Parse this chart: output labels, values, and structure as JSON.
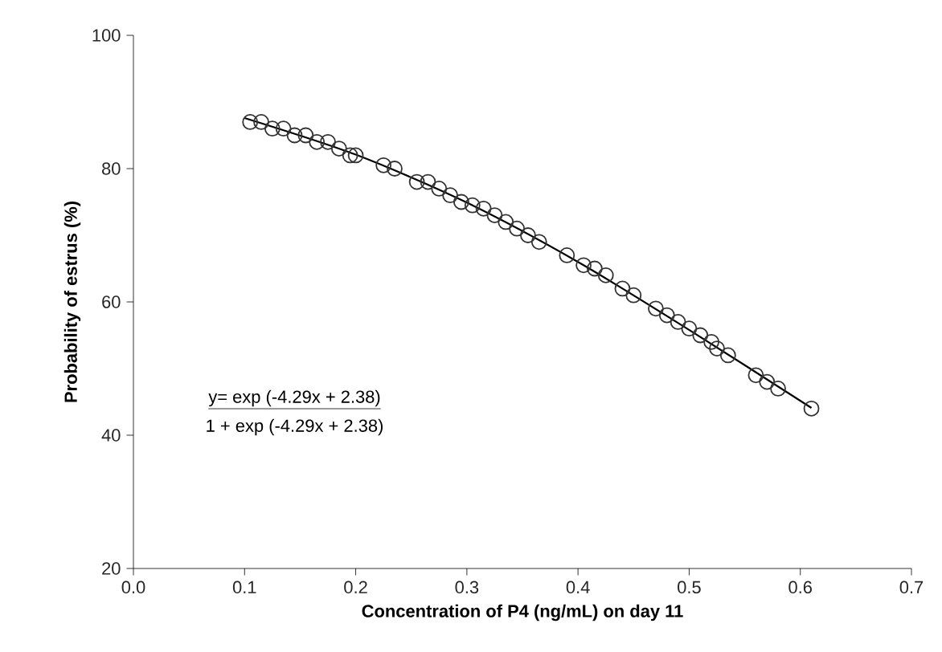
{
  "chart_data": {
    "type": "scatter",
    "xlabel": "Concentration of P4 (ng/mL) on day 11",
    "ylabel": "Probability of estrus (%)",
    "xlim": [
      0,
      0.7
    ],
    "ylim": [
      20,
      100
    ],
    "xticks": [
      {
        "value": 0,
        "label": "0.0"
      },
      {
        "value": 0.1,
        "label": "0.1"
      },
      {
        "value": 0.2,
        "label": "0.2"
      },
      {
        "value": 0.3,
        "label": "0.3"
      },
      {
        "value": 0.4,
        "label": "0.4"
      },
      {
        "value": 0.5,
        "label": "0.5"
      },
      {
        "value": 0.6,
        "label": "0.6"
      },
      {
        "value": 0.7,
        "label": "0.7"
      }
    ],
    "yticks": [
      20,
      40,
      60,
      80,
      100
    ],
    "marker": "circle",
    "series": [
      {
        "color": "#333333",
        "x": [
          0.105,
          0.115,
          0.125,
          0.135,
          0.145,
          0.155,
          0.165,
          0.175,
          0.185,
          0.195,
          0.2,
          0.225,
          0.235,
          0.255,
          0.265,
          0.275,
          0.285,
          0.295,
          0.305,
          0.315,
          0.325,
          0.335,
          0.345,
          0.355,
          0.365,
          0.39,
          0.405,
          0.415,
          0.425,
          0.44,
          0.45,
          0.47,
          0.48,
          0.49,
          0.5,
          0.51,
          0.52,
          0.525,
          0.535,
          0.56,
          0.57,
          0.58,
          0.61
        ],
        "values": [
          87,
          87,
          86,
          86,
          85,
          85,
          84,
          84,
          83,
          82,
          82,
          80.5,
          80,
          78,
          78,
          77,
          76,
          75,
          74.5,
          74,
          73,
          72,
          71,
          70,
          69,
          67,
          65.5,
          65,
          64,
          62,
          61,
          59,
          58,
          57,
          56,
          55,
          54,
          53,
          52,
          49,
          48,
          47,
          44
        ]
      },
      {
        "type": "line",
        "color": "#000000",
        "marker": "none",
        "x": [
          0.1,
          0.2,
          0.3,
          0.4,
          0.5,
          0.61
        ],
        "values": [
          87.6,
          82.1,
          74.9,
          66.0,
          55.8,
          44.1
        ]
      }
    ],
    "annotations": [
      "y= exp (-4.29x + 2.38)",
      "1 + exp (-4.29x + 2.38)"
    ]
  }
}
